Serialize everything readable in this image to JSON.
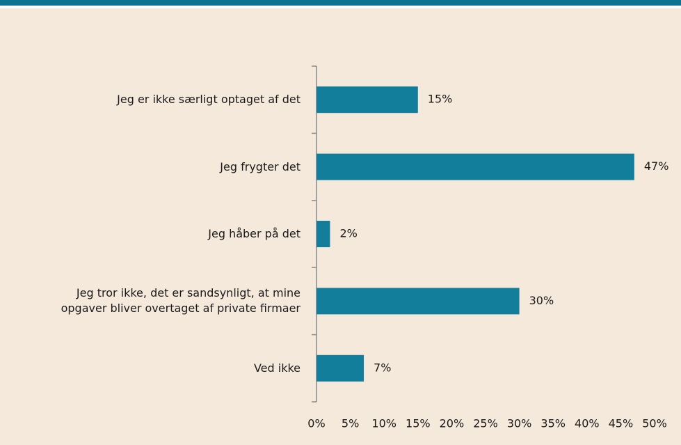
{
  "chart_data": {
    "type": "bar",
    "orientation": "horizontal",
    "categories": [
      "Jeg er ikke særligt optaget af det",
      "Jeg frygter det",
      "Jeg håber på det",
      "Jeg tror ikke, det er sandsynligt, at mine\nopgaver bliver overtaget af private firmaer",
      "Ved ikke"
    ],
    "values": [
      15,
      47,
      2,
      30,
      7
    ],
    "value_labels": [
      "15%",
      "47%",
      "2%",
      "30%",
      "7%"
    ],
    "color": "#137e9c",
    "xlim": [
      0,
      50
    ],
    "xticks": [
      {
        "value": 0,
        "label": "0%"
      },
      {
        "value": 5,
        "label": "5%"
      },
      {
        "value": 10,
        "label": "10%"
      },
      {
        "value": 15,
        "label": "15%"
      },
      {
        "value": 20,
        "label": "20%"
      },
      {
        "value": 25,
        "label": "25%"
      },
      {
        "value": 30,
        "label": "30%"
      },
      {
        "value": 35,
        "label": "35%"
      },
      {
        "value": 40,
        "label": "40%"
      },
      {
        "value": 45,
        "label": "45%"
      },
      {
        "value": 50,
        "label": "50%"
      }
    ],
    "grid": false
  }
}
